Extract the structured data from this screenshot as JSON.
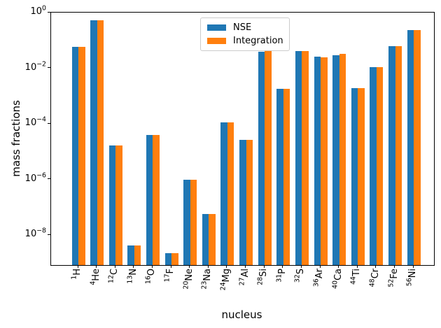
{
  "chart_data": {
    "type": "bar",
    "title": "",
    "xlabel": "nucleus",
    "ylabel": "mass fractions",
    "yscale": "log",
    "ylim": [
      8.3e-10,
      1.0
    ],
    "grid": false,
    "legend_position": "upper center",
    "y_ticks": [
      {
        "exponent": "0",
        "value": 1.0
      },
      {
        "exponent": "−2",
        "value": 0.01
      },
      {
        "exponent": "−4",
        "value": 0.0001
      },
      {
        "exponent": "−6",
        "value": 1e-06
      },
      {
        "exponent": "−8",
        "value": 1e-08
      }
    ],
    "categories": [
      {
        "mass": "1",
        "symbol": "H"
      },
      {
        "mass": "4",
        "symbol": "He"
      },
      {
        "mass": "12",
        "symbol": "C"
      },
      {
        "mass": "13",
        "symbol": "N"
      },
      {
        "mass": "16",
        "symbol": "O"
      },
      {
        "mass": "17",
        "symbol": "F"
      },
      {
        "mass": "20",
        "symbol": "Ne"
      },
      {
        "mass": "23",
        "symbol": "Na"
      },
      {
        "mass": "24",
        "symbol": "Mg"
      },
      {
        "mass": "27",
        "symbol": "Al"
      },
      {
        "mass": "28",
        "symbol": "Si"
      },
      {
        "mass": "31",
        "symbol": "P"
      },
      {
        "mass": "32",
        "symbol": "S"
      },
      {
        "mass": "36",
        "symbol": "Ar"
      },
      {
        "mass": "40",
        "symbol": "Ca"
      },
      {
        "mass": "44",
        "symbol": "Ti"
      },
      {
        "mass": "48",
        "symbol": "Cr"
      },
      {
        "mass": "52",
        "symbol": "Fe"
      },
      {
        "mass": "56",
        "symbol": "Ni"
      }
    ],
    "series": [
      {
        "name": "NSE",
        "color": "#1f77b4",
        "values": [
          0.058,
          0.53,
          1.7e-05,
          4.2e-09,
          4e-05,
          2.2e-09,
          9.5e-07,
          5.6e-08,
          0.000115,
          2.6e-05,
          0.039,
          0.0018,
          0.042,
          0.026,
          0.03,
          0.0019,
          0.011,
          0.062,
          0.24
        ]
      },
      {
        "name": "Integration",
        "color": "#ff7f0e",
        "values": [
          0.058,
          0.52,
          1.7e-05,
          4.2e-09,
          4e-05,
          2.2e-09,
          9.5e-07,
          5.6e-08,
          0.000115,
          2.6e-05,
          0.041,
          0.0018,
          0.042,
          0.025,
          0.032,
          0.0019,
          0.011,
          0.062,
          0.23
        ]
      }
    ]
  },
  "legend": {
    "items": [
      {
        "label": "NSE"
      },
      {
        "label": "Integration"
      }
    ]
  }
}
